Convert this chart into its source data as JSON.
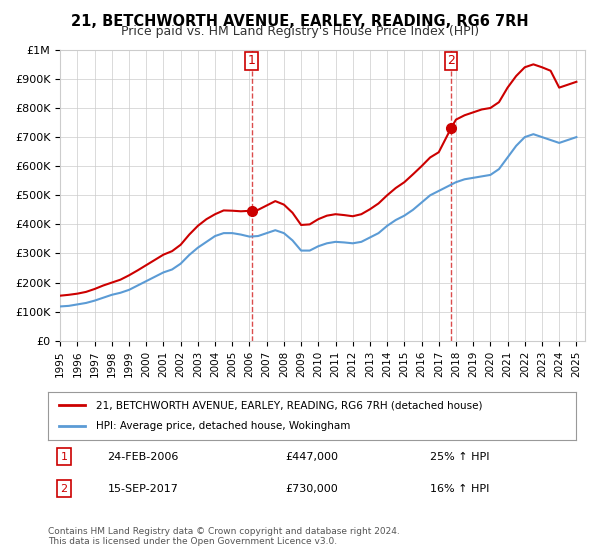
{
  "title": "21, BETCHWORTH AVENUE, EARLEY, READING, RG6 7RH",
  "subtitle": "Price paid vs. HM Land Registry's House Price Index (HPI)",
  "legend_line1": "21, BETCHWORTH AVENUE, EARLEY, READING, RG6 7RH (detached house)",
  "legend_line2": "HPI: Average price, detached house, Wokingham",
  "annotation1_label": "1",
  "annotation1_date": "24-FEB-2006",
  "annotation1_price": "£447,000",
  "annotation1_hpi": "25% ↑ HPI",
  "annotation2_label": "2",
  "annotation2_date": "15-SEP-2017",
  "annotation2_price": "£730,000",
  "annotation2_hpi": "16% ↑ HPI",
  "footnote": "Contains HM Land Registry data © Crown copyright and database right 2024.\nThis data is licensed under the Open Government Licence v3.0.",
  "sale1_year": 2006.14,
  "sale1_value": 447000,
  "sale2_year": 2017.71,
  "sale2_value": 730000,
  "red_color": "#cc0000",
  "blue_color": "#5b9bd5",
  "grid_color": "#cccccc",
  "ylim_min": 0,
  "ylim_max": 1000000,
  "xlim_min": 1995,
  "xlim_max": 2025.5
}
